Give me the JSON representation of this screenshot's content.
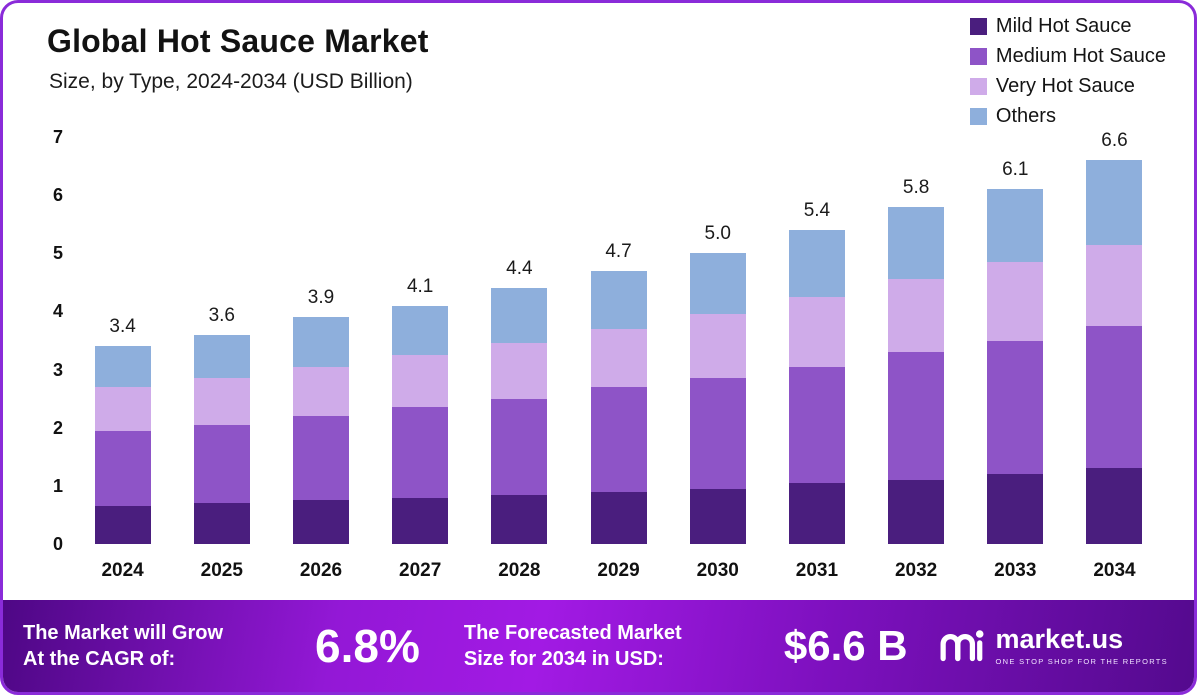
{
  "header": {
    "title": "Global Hot Sauce Market",
    "subtitle": "Size, by Type, 2024-2034 (USD Billion)"
  },
  "chart_data": {
    "type": "bar",
    "stacked": true,
    "title": "Global Hot Sauce Market",
    "subtitle": "Size, by Type, 2024-2034 (USD Billion)",
    "categories": [
      "2024",
      "2025",
      "2026",
      "2027",
      "2028",
      "2029",
      "2030",
      "2031",
      "2032",
      "2033",
      "2034"
    ],
    "series": [
      {
        "name": "Mild Hot Sauce",
        "color": "#4a1e7e",
        "values": [
          0.65,
          0.7,
          0.75,
          0.8,
          0.85,
          0.9,
          0.95,
          1.05,
          1.1,
          1.2,
          1.3
        ]
      },
      {
        "name": "Medium Hot Sauce",
        "color": "#8e54c7",
        "values": [
          1.3,
          1.35,
          1.45,
          1.55,
          1.65,
          1.8,
          1.9,
          2.0,
          2.2,
          2.3,
          2.45
        ]
      },
      {
        "name": "Very Hot Sauce",
        "color": "#cfabe9",
        "values": [
          0.75,
          0.8,
          0.85,
          0.9,
          0.95,
          1.0,
          1.1,
          1.2,
          1.25,
          1.35,
          1.4
        ]
      },
      {
        "name": "Others",
        "color": "#8eafdc",
        "values": [
          0.7,
          0.75,
          0.85,
          0.85,
          0.95,
          1.0,
          1.05,
          1.15,
          1.25,
          1.25,
          1.45
        ]
      }
    ],
    "totals": [
      "3.4",
      "3.6",
      "3.9",
      "4.1",
      "4.4",
      "4.7",
      "5.0",
      "5.4",
      "5.8",
      "6.1",
      "6.6"
    ],
    "xlabel": "",
    "ylabel": "",
    "ylim": [
      0,
      7
    ],
    "y_ticks": [
      0,
      1,
      2,
      3,
      4,
      5,
      6,
      7
    ],
    "grid": false,
    "legend_position": "top-right"
  },
  "banner": {
    "cagr_label_line1": "The Market will Grow",
    "cagr_label_line2": "At the CAGR of:",
    "cagr_value": "6.8%",
    "forecast_label_line1": "The Forecasted Market",
    "forecast_label_line2": "Size for 2034 in USD:",
    "forecast_value": "$6.6 B",
    "brand": "market.us",
    "brand_tagline": "ONE STOP SHOP FOR THE REPORTS"
  }
}
